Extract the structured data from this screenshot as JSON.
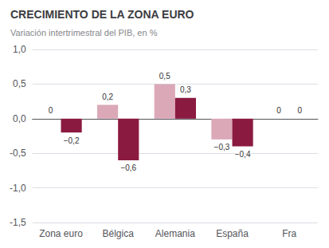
{
  "chart_data": {
    "type": "bar",
    "title": "CRECIMIENTO DE LA ZONA EURO",
    "subtitle": "Variación intertrimestral del PIB, en %",
    "categories": [
      "Zona euro",
      "Bélgica",
      "Alemania",
      "España",
      "Fra"
    ],
    "series": [
      {
        "color": "#dba8b8",
        "values": [
          0,
          0.2,
          0.5,
          -0.3,
          0
        ],
        "value_labels": [
          "0",
          "0,2",
          "0,5",
          "−0,3",
          "0"
        ]
      },
      {
        "color": "#8b1a40",
        "values": [
          -0.2,
          -0.6,
          0.3,
          -0.4,
          0
        ],
        "value_labels": [
          "−0,2",
          "−0,6",
          "0,3",
          "−0,4",
          "0"
        ]
      }
    ],
    "ylim": [
      -1.5,
      1.0
    ],
    "yticks": [
      {
        "value": -1.5,
        "label": "-1,5"
      },
      {
        "value": -1.0,
        "label": "-1,0"
      },
      {
        "value": -0.5,
        "label": "-0,5"
      },
      {
        "value": 0.0,
        "label": "0,0"
      },
      {
        "value": 0.5,
        "label": "0,5"
      },
      {
        "value": 1.0,
        "label": "1,0"
      }
    ],
    "grid": true,
    "data_labels": true
  }
}
